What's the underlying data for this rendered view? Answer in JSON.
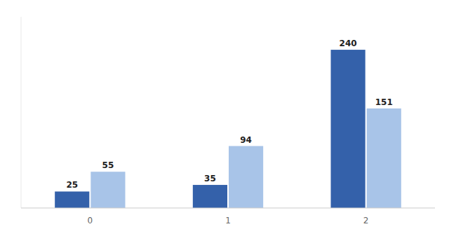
{
  "chart_data": {
    "type": "bar",
    "categories": [
      "0",
      "1",
      "2"
    ],
    "series": [
      {
        "color": "#3461AA",
        "values": [
          25,
          35,
          240
        ]
      },
      {
        "color": "#A8C4E8",
        "values": [
          55,
          94,
          151
        ]
      }
    ],
    "ylim": [
      0,
      290
    ],
    "data_labels": true,
    "tick_labels": "x",
    "grid": false
  }
}
